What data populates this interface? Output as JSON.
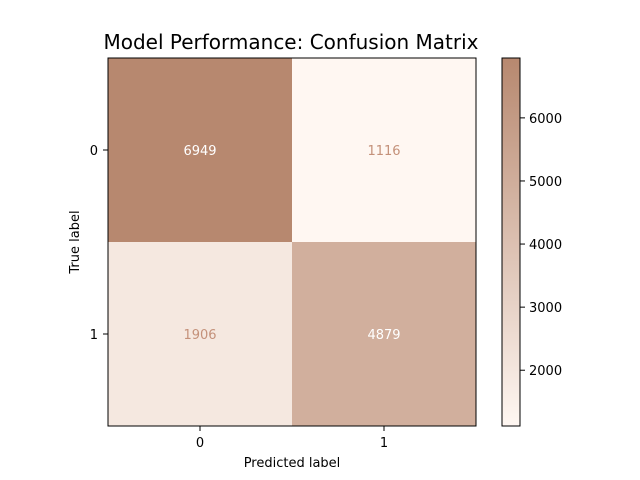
{
  "chart_data": {
    "type": "heatmap",
    "title": "Model Performance: Confusion Matrix",
    "xlabel": "Predicted label",
    "ylabel": "True label",
    "x_categories": [
      "0",
      "1"
    ],
    "y_categories": [
      "0",
      "1"
    ],
    "matrix": [
      [
        6949,
        1116
      ],
      [
        1906,
        4879
      ]
    ],
    "colorbar": {
      "ticks": [
        "2000",
        "3000",
        "4000",
        "5000",
        "6000"
      ],
      "tick_values": [
        2000,
        3000,
        4000,
        5000,
        6000
      ],
      "min": 1116,
      "max": 6949
    },
    "colors": {
      "low": "#fff7f2",
      "high": "#b7886f",
      "text_on_dark": "#ffffff",
      "text_on_light": "#c4917a"
    },
    "grid": false
  }
}
